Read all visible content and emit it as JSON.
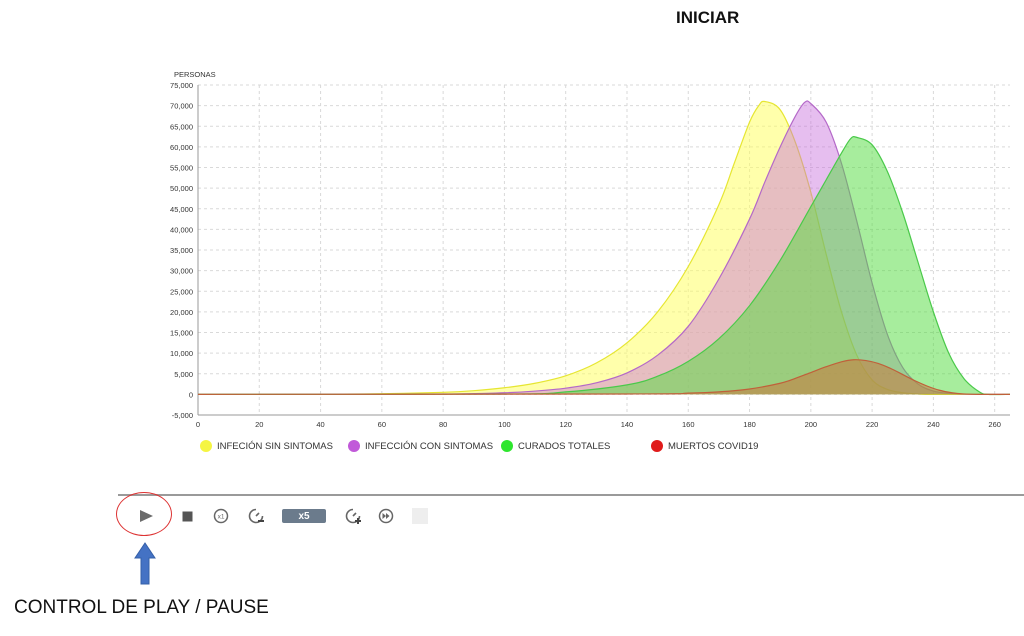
{
  "header": {
    "start_label": "INICIAR"
  },
  "chart_data": {
    "type": "area",
    "ylabel": "PERSONAS",
    "xlabel": "",
    "xlim": [
      0,
      265
    ],
    "ylim": [
      -5000,
      75000
    ],
    "x_ticks": [
      0,
      20,
      40,
      60,
      80,
      100,
      120,
      140,
      160,
      180,
      200,
      220,
      240,
      260
    ],
    "y_ticks": [
      -5000,
      0,
      5000,
      10000,
      15000,
      20000,
      25000,
      30000,
      35000,
      40000,
      45000,
      50000,
      55000,
      60000,
      65000,
      70000,
      75000
    ],
    "y_tick_labels": [
      "-5,000",
      "0",
      "5,000",
      "10,000",
      "15,000",
      "20,000",
      "25,000",
      "30,000",
      "35,000",
      "40,000",
      "45,000",
      "50,000",
      "55,000",
      "60,000",
      "65,000",
      "70,000",
      "75,000"
    ],
    "grid": true,
    "legend_position": "bottom",
    "series": [
      {
        "name": "INFECIÓN SIN SINTOMAS",
        "color": "#f5f542",
        "fill": "rgba(255,255,102,0.55)",
        "stroke": "#e6e632",
        "x": [
          0,
          40,
          60,
          80,
          90,
          100,
          110,
          120,
          130,
          140,
          150,
          160,
          170,
          175,
          180,
          183,
          185,
          190,
          195,
          200,
          205,
          210,
          215,
          220,
          225,
          230,
          235,
          240,
          265
        ],
        "y": [
          0,
          50,
          150,
          500,
          900,
          1600,
          2700,
          4500,
          7600,
          12500,
          20000,
          31000,
          46000,
          56000,
          66000,
          70000,
          71000,
          69000,
          61000,
          49000,
          34000,
          20000,
          9500,
          3500,
          1200,
          400,
          100,
          0,
          0
        ]
      },
      {
        "name": "INFECCIÓN CON SINTOMAS",
        "color": "#c159d9",
        "fill": "rgba(200,110,220,0.45)",
        "stroke": "#b469c8",
        "x": [
          0,
          80,
          100,
          110,
          120,
          130,
          140,
          150,
          160,
          170,
          180,
          185,
          190,
          195,
          198,
          200,
          205,
          210,
          215,
          220,
          225,
          230,
          235,
          240,
          245,
          250,
          265
        ],
        "y": [
          0,
          100,
          400,
          800,
          1500,
          2800,
          5200,
          9500,
          16500,
          28000,
          42500,
          51500,
          60000,
          67500,
          70800,
          70500,
          66000,
          56000,
          42000,
          27000,
          14500,
          6500,
          2500,
          800,
          250,
          50,
          0
        ]
      },
      {
        "name": "CURADOS TOTALES",
        "color": "#2ee62e",
        "fill": "rgba(80,220,60,0.5)",
        "stroke": "#4ac94a",
        "x": [
          0,
          100,
          120,
          140,
          150,
          160,
          170,
          180,
          190,
          200,
          205,
          210,
          213,
          215,
          220,
          225,
          230,
          235,
          240,
          245,
          250,
          255,
          258,
          265
        ],
        "y": [
          0,
          100,
          600,
          2300,
          4400,
          8000,
          13500,
          21500,
          32500,
          45500,
          52000,
          58500,
          62000,
          62300,
          60500,
          54000,
          44000,
          32000,
          20000,
          10000,
          3800,
          600,
          0,
          0
        ]
      },
      {
        "name": "MUERTOS COVID19",
        "color": "#e01b1b",
        "fill": "rgba(200,120,60,0.55)",
        "stroke": "#c0603a",
        "x": [
          0,
          140,
          160,
          170,
          180,
          190,
          195,
          200,
          205,
          210,
          214,
          218,
          222,
          226,
          230,
          234,
          238,
          242,
          246,
          250,
          255,
          265
        ],
        "y": [
          0,
          100,
          300,
          600,
          1300,
          2700,
          3900,
          5300,
          6700,
          7900,
          8400,
          8200,
          7500,
          6300,
          4800,
          3300,
          2000,
          1000,
          400,
          100,
          0,
          0
        ]
      }
    ]
  },
  "controls": {
    "speed_label": "x5",
    "buttons": [
      {
        "name": "play-pause-button",
        "icon": "play-icon"
      },
      {
        "name": "stop-button",
        "icon": "stop-icon"
      },
      {
        "name": "speed-x1-button",
        "icon": "speed-x1-icon"
      },
      {
        "name": "speed-down-button",
        "icon": "speed-down-icon"
      },
      {
        "name": "speed-up-button",
        "icon": "speed-up-icon"
      },
      {
        "name": "skip-forward-button",
        "icon": "skip-forward-icon"
      }
    ]
  },
  "annotation": {
    "text": "CONTROL DE PLAY / PAUSE",
    "arrow_color": "#4472c4",
    "circle_color": "#d33333"
  }
}
